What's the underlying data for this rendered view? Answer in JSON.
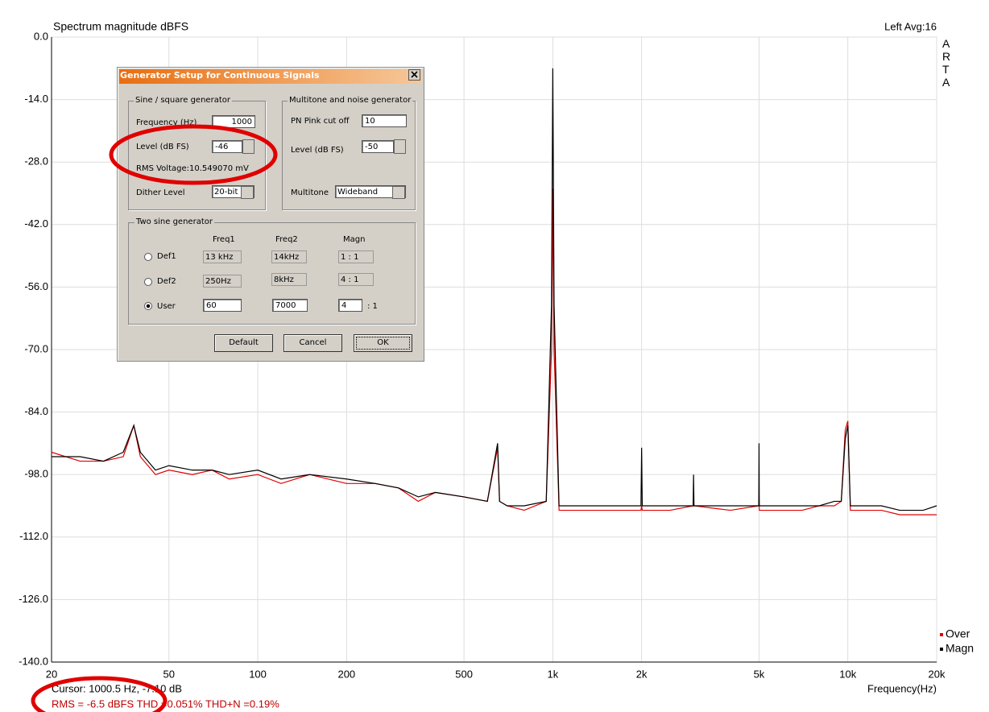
{
  "chart_data": {
    "type": "line",
    "title": "Spectrum magnitude dBFS",
    "corner_label": "Left  Avg:16",
    "watermark": "ARTA",
    "x_label": "Frequency(Hz)",
    "log_x": true,
    "grid": true,
    "legend": "lower right",
    "xlim": [
      20,
      20000
    ],
    "ylim": [
      -140,
      0
    ],
    "xticks": [
      20,
      50,
      100,
      200,
      500,
      {
        "value": 1000,
        "label": "1k"
      },
      {
        "value": 2000,
        "label": "2k"
      },
      {
        "value": 5000,
        "label": "5k"
      },
      {
        "value": 10000,
        "label": "10k"
      },
      {
        "value": 20000,
        "label": "20k"
      }
    ],
    "yticks": [
      {
        "value": 0,
        "label": "0.0"
      },
      {
        "value": -14,
        "label": "-14.0"
      },
      {
        "value": -28,
        "label": "-28.0"
      },
      {
        "value": -42,
        "label": "-42.0"
      },
      {
        "value": -56,
        "label": "-56.0"
      },
      {
        "value": -70,
        "label": "-70.0"
      },
      {
        "value": -84,
        "label": "-84.0"
      },
      {
        "value": -98,
        "label": "-98.0"
      },
      {
        "value": -112,
        "label": "-112.0"
      },
      {
        "value": -126,
        "label": "-126.0"
      },
      {
        "value": -140,
        "label": "-140.0"
      }
    ],
    "x": [
      20,
      25,
      30,
      35,
      38,
      40,
      45,
      50,
      60,
      70,
      80,
      100,
      120,
      150,
      200,
      250,
      300,
      350,
      400,
      500,
      600,
      650,
      660,
      700,
      800,
      950,
      990,
      1000,
      1010,
      1050,
      1500,
      1990,
      2000,
      2010,
      2500,
      2990,
      3000,
      3010,
      4000,
      4990,
      5000,
      5010,
      6000,
      7000,
      8000,
      9000,
      9500,
      9800,
      10000,
      10200,
      11000,
      13000,
      15000,
      18000,
      20000
    ],
    "series": [
      {
        "name": "Over",
        "color": "#e00000",
        "values": [
          -93,
          -95,
          -95,
          -94,
          -87,
          -94,
          -98,
          -97,
          -98,
          -97,
          -99,
          -98,
          -100,
          -98,
          -100,
          -100,
          -101,
          -104,
          -102,
          -103,
          -104,
          -92,
          -104,
          -105,
          -106,
          -104,
          -70,
          -34,
          -70,
          -106,
          -106,
          -106,
          -105,
          -106,
          -106,
          -105,
          -104,
          -105,
          -106,
          -105,
          -103,
          -106,
          -106,
          -106,
          -105,
          -105,
          -104,
          -88,
          -86,
          -106,
          -106,
          -106,
          -107,
          -107,
          -107
        ]
      },
      {
        "name": "Magn",
        "color": "#000000",
        "values": [
          -94,
          -94,
          -95,
          -93,
          -87,
          -93,
          -97,
          -96,
          -97,
          -97,
          -98,
          -97,
          -99,
          -98,
          -99,
          -100,
          -101,
          -103,
          -102,
          -103,
          -104,
          -91,
          -104,
          -105,
          -105,
          -104,
          -60,
          -7,
          -60,
          -105,
          -105,
          -105,
          -92,
          -105,
          -105,
          -105,
          -98,
          -105,
          -105,
          -105,
          -91,
          -105,
          -105,
          -105,
          -105,
          -104,
          -104,
          -90,
          -87,
          -105,
          -105,
          -105,
          -106,
          -106,
          -105
        ]
      }
    ]
  },
  "status": {
    "cursor": "Cursor:  1000.5 Hz,  -7.10 dB",
    "measurements": "RMS =   -6.5 dBFS   THD =0.051%   THD+N =0.19%"
  },
  "dialog": {
    "title": "Generator Setup for Continuous Signals",
    "sine_group": {
      "title": "Sine / square generator",
      "frequency_label": "Frequency (Hz)",
      "frequency": "1000",
      "level_label": "Level (dB FS)",
      "level": "-46",
      "rms_voltage": "RMS Voltage:10.549070 mV",
      "dither_label": "Dither Level",
      "dither": "20-bit"
    },
    "noise_group": {
      "title": "Multitone and noise generator",
      "cutoff_label": "PN Pink cut off",
      "cutoff": "10",
      "level_label": "Level (dB FS)",
      "level": "-50",
      "multitone_label": "Multitone",
      "multitone": "Wideband"
    },
    "two_sine_group": {
      "title": "Two sine generator",
      "headers": [
        "Freq1",
        "Freq2",
        "Magn"
      ],
      "rows": [
        {
          "label": "Def1",
          "freq1": "13 kHz",
          "freq2": "14kHz",
          "magn": "1 : 1"
        },
        {
          "label": "Def2",
          "freq1": "250Hz",
          "freq2": "8kHz",
          "magn": "4 : 1"
        },
        {
          "label": "User",
          "freq1": "60",
          "freq2": "7000",
          "magn": "4",
          "magn_suffix": ": 1"
        }
      ]
    },
    "buttons": [
      "Default",
      "Cancel",
      "OK"
    ]
  }
}
